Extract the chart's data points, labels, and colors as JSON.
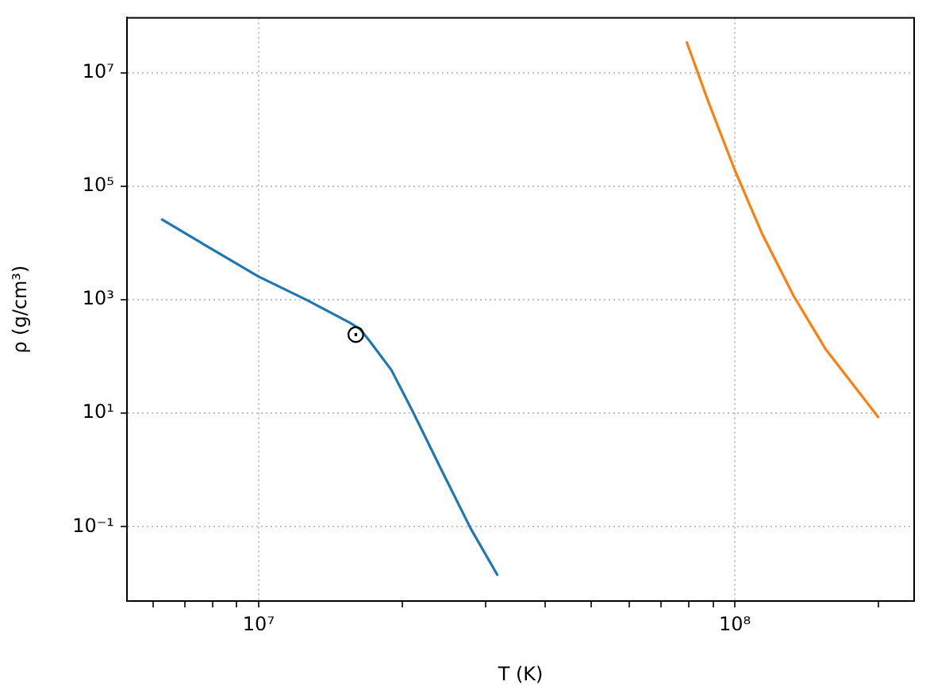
{
  "chart_data": {
    "type": "line",
    "xlabel": "T (K)",
    "ylabel": "ρ (g/cm³)",
    "log": "xy",
    "grid": true,
    "legend": false,
    "marker": "none",
    "line_style": "solid",
    "xlim": [
      5290000,
      238000000
    ],
    "ylim": [
      0.0049,
      94000000
    ],
    "xticks": [
      {
        "value": 6000000,
        "label": null
      },
      {
        "value": 7000000,
        "label": null
      },
      {
        "value": 8000000,
        "label": null
      },
      {
        "value": 9000000,
        "label": null
      },
      {
        "value": 10000000,
        "label": "10⁷"
      },
      {
        "value": 20000000,
        "label": null
      },
      {
        "value": 30000000,
        "label": null
      },
      {
        "value": 40000000,
        "label": null
      },
      {
        "value": 50000000,
        "label": null
      },
      {
        "value": 60000000,
        "label": null
      },
      {
        "value": 70000000,
        "label": null
      },
      {
        "value": 80000000,
        "label": null
      },
      {
        "value": 90000000,
        "label": null
      },
      {
        "value": 100000000,
        "label": "10⁸"
      },
      {
        "value": 200000000,
        "label": null
      }
    ],
    "yticks": [
      {
        "value": 0.1,
        "label": "10⁻¹"
      },
      {
        "value": 10,
        "label": "10¹"
      },
      {
        "value": 1000,
        "label": "10³"
      },
      {
        "value": 100000,
        "label": "10⁵"
      },
      {
        "value": 10000000,
        "label": "10⁷"
      }
    ],
    "series": [
      {
        "color": "#1f77b4",
        "x": [
          6270000,
          7960000,
          10000000,
          12600000,
          15500000,
          16300000,
          17100000,
          19000000,
          21100000,
          24500000,
          27900000,
          31700000
        ],
        "values": [
          26000,
          7900,
          2570,
          1000,
          400,
          310,
          189,
          58,
          10.5,
          0.82,
          0.092,
          0.0143
        ]
      },
      {
        "color": "#ff7f0e",
        "x": [
          79300000,
          88000000,
          100000000,
          114000000,
          133000000,
          155000000,
          200000000
        ],
        "values": [
          34500000,
          3100000,
          194000,
          14900,
          1160,
          137,
          8.6
        ]
      }
    ],
    "annotations": [
      {
        "text": "⊙",
        "x": 16000000,
        "y": 230
      }
    ]
  }
}
